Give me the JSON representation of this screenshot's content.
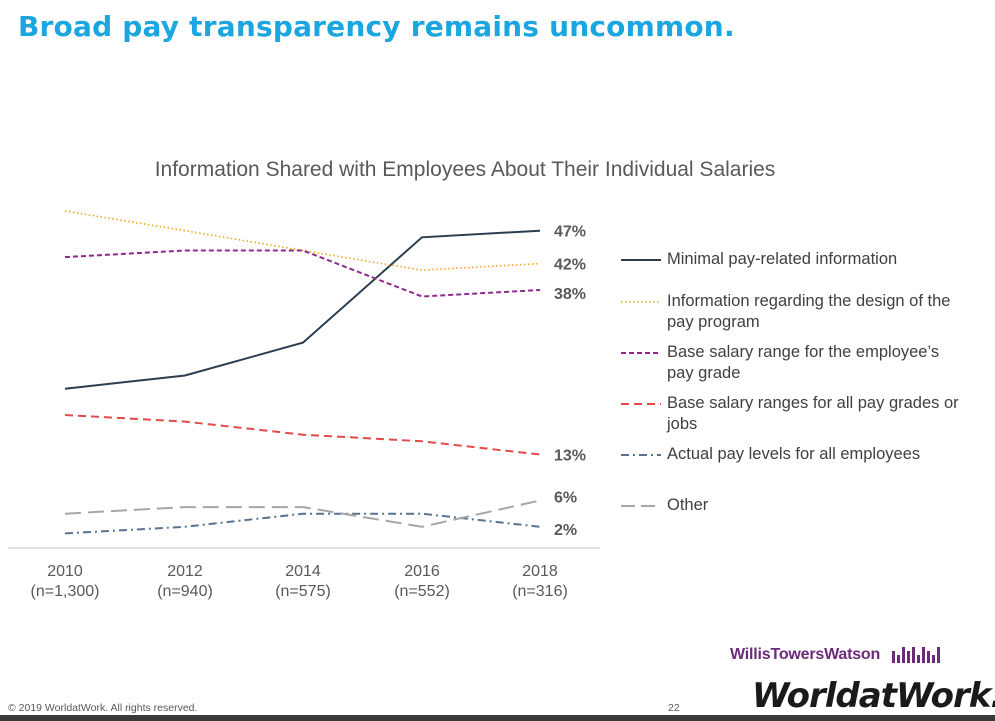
{
  "slide": {
    "title": "Broad pay transparency remains uncommon.",
    "footer_copyright": "© 2019 WorldatWork. All rights reserved.",
    "page_number": "22",
    "logo_wtw": "WillisTowersWatson",
    "logo_waw": "WorldatWork."
  },
  "colors": {
    "title": "#1ba6df",
    "minimal": "#2b3e50",
    "design": "#f0a81e",
    "base_own": "#8e2a8e",
    "base_all": "#e24a4a",
    "actual": "#5a7290",
    "other": "#a6a6a6"
  },
  "chart_data": {
    "type": "line",
    "title": "Information Shared with Employees About Their Individual Salaries",
    "categories": [
      "2010",
      "2012",
      "2014",
      "2016",
      "2018"
    ],
    "category_sublabels": [
      "(n=1,300)",
      "(n=940)",
      "(n=575)",
      "(n=552)",
      "(n=316)"
    ],
    "xlabel": "",
    "ylabel": "",
    "ylim": [
      0,
      50
    ],
    "grid": false,
    "legend_position": "right",
    "series": [
      {
        "name": "Minimal pay-related information",
        "values": [
          23,
          25,
          30,
          46,
          47
        ],
        "end_label": "47%",
        "style": "solid",
        "color_key": "minimal"
      },
      {
        "name": "Information regarding the design of the pay program",
        "values": [
          50,
          47,
          44,
          41,
          42
        ],
        "end_label": "42%",
        "style": "dotted",
        "color_key": "design"
      },
      {
        "name": "Base salary range for the employee’s pay grade",
        "values": [
          43,
          44,
          44,
          37,
          38
        ],
        "end_label": "38%",
        "style": "dashed",
        "color_key": "base_own"
      },
      {
        "name": "Base salary ranges for all pay grades or jobs",
        "values": [
          19,
          18,
          16,
          15,
          13
        ],
        "end_label": "13%",
        "style": "longdash",
        "color_key": "base_all"
      },
      {
        "name": "Actual pay levels for all employees",
        "values": [
          1,
          2,
          4,
          4,
          2
        ],
        "end_label": "2%",
        "style": "dashdot",
        "color_key": "actual"
      },
      {
        "name": "Other",
        "values": [
          4,
          5,
          5,
          2,
          6
        ],
        "end_label": "6%",
        "style": "longdash",
        "color_key": "other"
      }
    ]
  }
}
